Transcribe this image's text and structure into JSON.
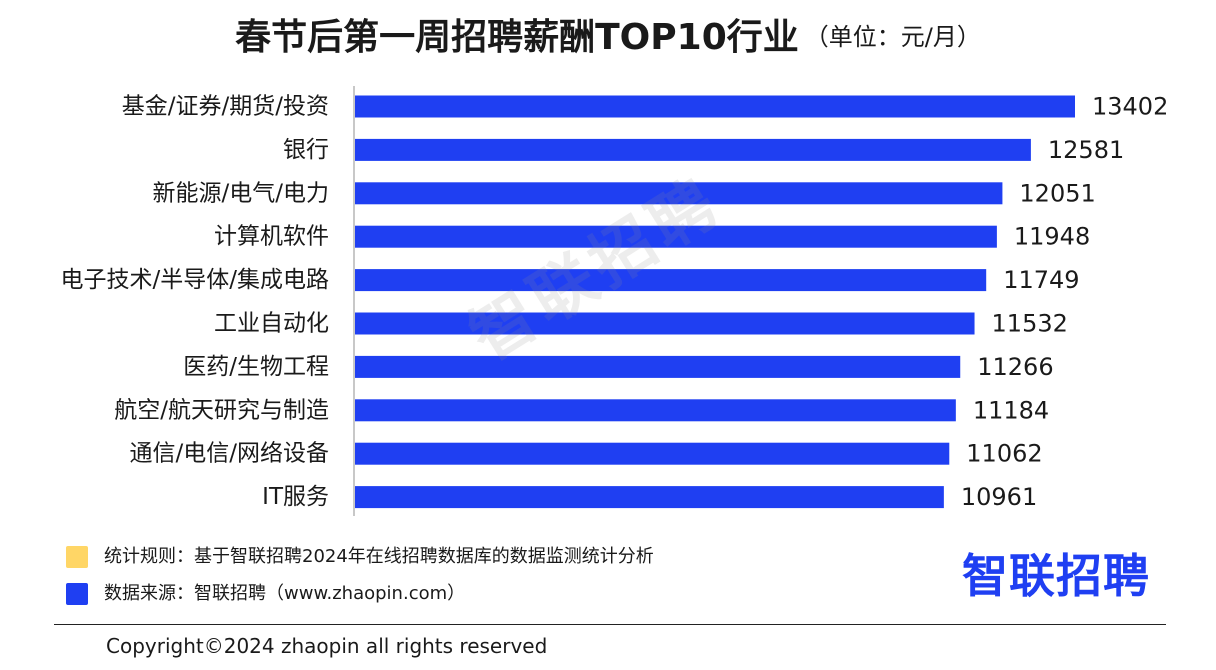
{
  "header": {
    "title": "春节后第一周招聘薪酬TOP10行业",
    "unit": "（单位：元/月）"
  },
  "chart_data": {
    "type": "bar",
    "orientation": "horizontal",
    "categories": [
      "基金/证券/期货/投资",
      "银行",
      "新能源/电气/电力",
      "计算机软件",
      "电子技术/半导体/集成电路",
      "工业自动化",
      "医药/生物工程",
      "航空/航天研究与制造",
      "通信/电信/网络设备",
      "IT服务"
    ],
    "values": [
      13402,
      12581,
      12051,
      11948,
      11749,
      11532,
      11266,
      11184,
      11062,
      10961
    ],
    "xlim": [
      0,
      13402
    ],
    "bar_color": "#1f3ff2",
    "grid": false
  },
  "watermark": "智联招聘",
  "legend": {
    "rule_label": "统计规则：基于智联招聘2024年在线招聘数据库的数据监测统计分析",
    "source_label": "数据来源：智联招聘（www.zhaopin.com）",
    "rule_color": "#ffd666",
    "source_color": "#1f3ff2"
  },
  "logo_text": "智联招聘",
  "footer": {
    "copyright": "Copyright©2024 zhaopin all rights reserved"
  }
}
